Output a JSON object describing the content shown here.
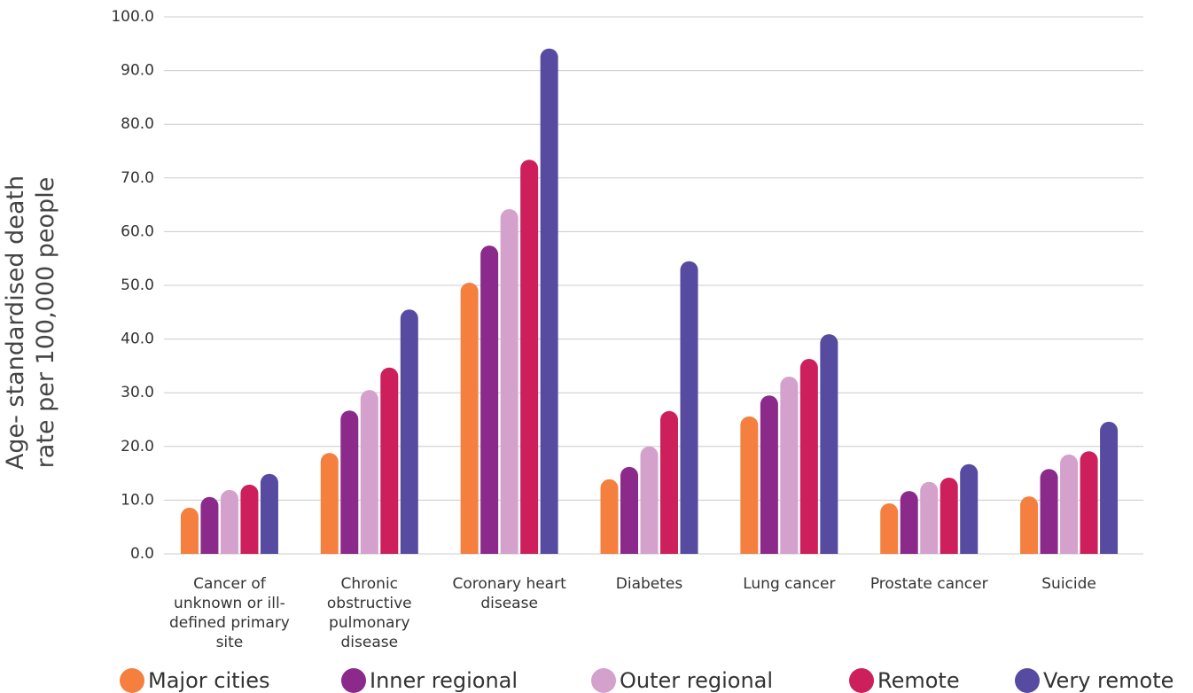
{
  "chart_data": {
    "type": "bar",
    "y_label": "Age- standardised death rate per 100,000 people",
    "categories": [
      "Cancer of unknown or ill-defined primary site",
      "Chronic obstructive pulmonary disease",
      "Coronary heart disease",
      "Diabetes",
      "Lung cancer",
      "Prostate cancer",
      "Suicide"
    ],
    "series": [
      {
        "name": "Major cities",
        "color": "#f47f3f",
        "values": [
          8.6,
          18.8,
          50.5,
          13.9,
          25.6,
          9.4,
          10.7
        ]
      },
      {
        "name": "Inner regional",
        "color": "#8b2a8a",
        "values": [
          10.6,
          26.7,
          57.4,
          16.2,
          29.5,
          11.7,
          15.8
        ]
      },
      {
        "name": "Outer regional",
        "color": "#d4a0cc",
        "values": [
          11.9,
          30.5,
          64.2,
          20.0,
          33.0,
          13.4,
          18.5
        ]
      },
      {
        "name": "Remote",
        "color": "#cc1f5c",
        "values": [
          12.9,
          34.7,
          73.4,
          26.6,
          36.3,
          14.2,
          19.1
        ]
      },
      {
        "name": "Very remote",
        "color": "#564ba0",
        "values": [
          14.9,
          45.5,
          94.1,
          54.5,
          40.9,
          16.7,
          24.6
        ]
      }
    ],
    "ylim": [
      0,
      100
    ],
    "yticks": [
      {
        "value": 0,
        "label": "0.0"
      },
      {
        "value": 10,
        "label": "10.0"
      },
      {
        "value": 20,
        "label": "20.0"
      },
      {
        "value": 30,
        "label": "30.0"
      },
      {
        "value": 40,
        "label": "40.0"
      },
      {
        "value": 50,
        "label": "50.0"
      },
      {
        "value": 60,
        "label": "60.0"
      },
      {
        "value": 70,
        "label": "70.0"
      },
      {
        "value": 80,
        "label": "80.0"
      },
      {
        "value": 90,
        "label": "90.0"
      },
      {
        "value": 100,
        "label": "100.0"
      }
    ],
    "grid": true
  }
}
